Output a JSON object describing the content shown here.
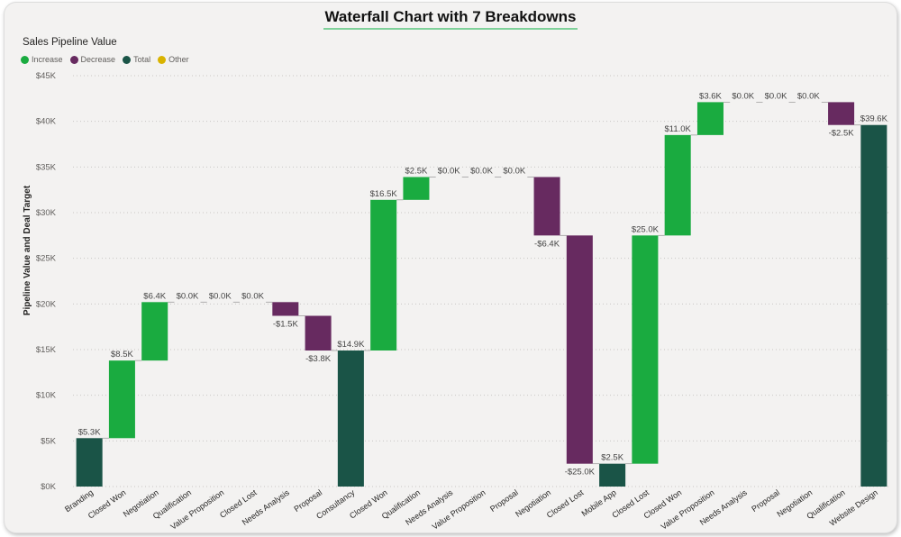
{
  "title": "Waterfall Chart with 7 Breakdowns",
  "subtitle": "Sales Pipeline Value",
  "legend": [
    {
      "label": "Increase",
      "color": "#1aab40"
    },
    {
      "label": "Decrease",
      "color": "#672a60"
    },
    {
      "label": "Total",
      "color": "#1a5447"
    },
    {
      "label": "Other",
      "color": "#d9b300"
    }
  ],
  "chart_data": {
    "type": "waterfall",
    "ylabel": "Pipeline Value and Deal Target",
    "ylim": [
      0,
      45000
    ],
    "yticks": [
      0,
      5000,
      10000,
      15000,
      20000,
      25000,
      30000,
      35000,
      40000,
      45000
    ],
    "ytick_labels": [
      "$0K",
      "$5K",
      "$10K",
      "$15K",
      "$20K",
      "$25K",
      "$30K",
      "$35K",
      "$40K",
      "$45K"
    ],
    "grid": true,
    "bars": [
      {
        "category": "Branding",
        "kind": "total",
        "start": 0,
        "end": 5300,
        "label": "$5.3K"
      },
      {
        "category": "Closed Won",
        "kind": "increase",
        "start": 5300,
        "end": 13800,
        "label": "$8.5K"
      },
      {
        "category": "Negotiation",
        "kind": "increase",
        "start": 13800,
        "end": 20200,
        "label": "$6.4K"
      },
      {
        "category": "Qualification",
        "kind": "increase",
        "start": 20200,
        "end": 20200,
        "label": "$0.0K"
      },
      {
        "category": "Value Proposition",
        "kind": "increase",
        "start": 20200,
        "end": 20200,
        "label": "$0.0K"
      },
      {
        "category": "Closed Lost",
        "kind": "increase",
        "start": 20200,
        "end": 20200,
        "label": "$0.0K"
      },
      {
        "category": "Needs Analysis",
        "kind": "decrease",
        "start": 20200,
        "end": 18700,
        "label": "-$1.5K"
      },
      {
        "category": "Proposal",
        "kind": "decrease",
        "start": 18700,
        "end": 14900,
        "label": "-$3.8K"
      },
      {
        "category": "Consultancy",
        "kind": "total",
        "start": 0,
        "end": 14900,
        "label": "$14.9K"
      },
      {
        "category": "Closed Won",
        "kind": "increase",
        "start": 14900,
        "end": 31400,
        "label": "$16.5K"
      },
      {
        "category": "Qualification",
        "kind": "increase",
        "start": 31400,
        "end": 33900,
        "label": "$2.5K"
      },
      {
        "category": "Needs Analysis",
        "kind": "increase",
        "start": 33900,
        "end": 33900,
        "label": "$0.0K"
      },
      {
        "category": "Value Proposition",
        "kind": "increase",
        "start": 33900,
        "end": 33900,
        "label": "$0.0K"
      },
      {
        "category": "Proposal",
        "kind": "increase",
        "start": 33900,
        "end": 33900,
        "label": "$0.0K"
      },
      {
        "category": "Negotiation",
        "kind": "decrease",
        "start": 33900,
        "end": 27500,
        "label": "-$6.4K"
      },
      {
        "category": "Closed Lost",
        "kind": "decrease",
        "start": 27500,
        "end": 2500,
        "label": "-$25.0K"
      },
      {
        "category": "Mobile App",
        "kind": "total",
        "start": 0,
        "end": 2500,
        "label": "$2.5K"
      },
      {
        "category": "Closed Lost",
        "kind": "increase",
        "start": 2500,
        "end": 27500,
        "label": "$25.0K"
      },
      {
        "category": "Closed Won",
        "kind": "increase",
        "start": 27500,
        "end": 38500,
        "label": "$11.0K"
      },
      {
        "category": "Value Proposition",
        "kind": "increase",
        "start": 38500,
        "end": 42100,
        "label": "$3.6K"
      },
      {
        "category": "Needs Analysis",
        "kind": "increase",
        "start": 42100,
        "end": 42100,
        "label": "$0.0K"
      },
      {
        "category": "Proposal",
        "kind": "increase",
        "start": 42100,
        "end": 42100,
        "label": "$0.0K"
      },
      {
        "category": "Negotiation",
        "kind": "increase",
        "start": 42100,
        "end": 42100,
        "label": "$0.0K"
      },
      {
        "category": "Qualification",
        "kind": "decrease",
        "start": 42100,
        "end": 39600,
        "label": "-$2.5K"
      },
      {
        "category": "Website Design",
        "kind": "total",
        "start": 0,
        "end": 39600,
        "label": "$39.6K"
      }
    ]
  }
}
